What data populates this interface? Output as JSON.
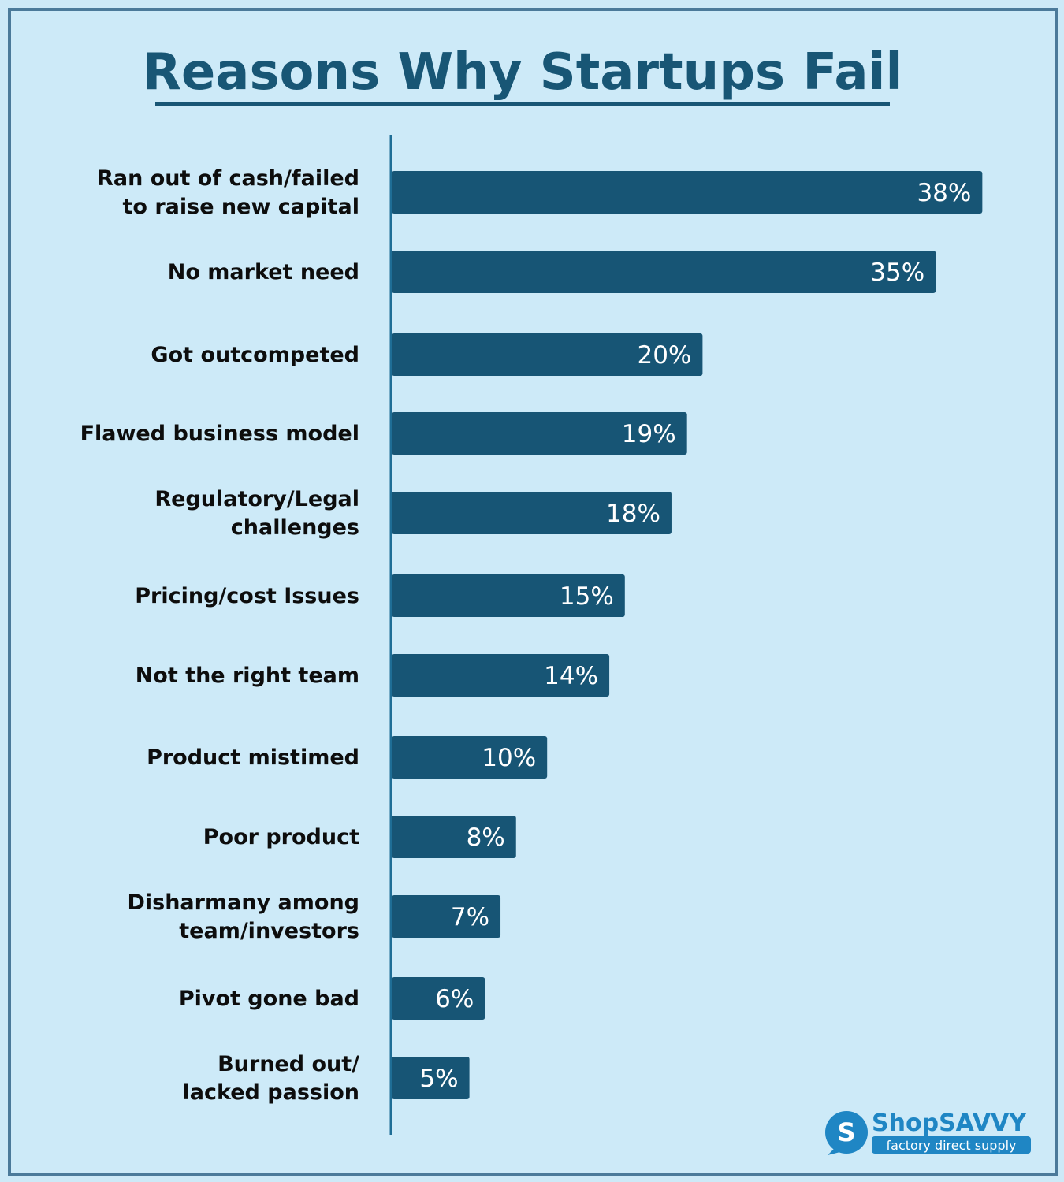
{
  "chart_data": {
    "type": "bar",
    "orientation": "horizontal",
    "title": "Reasons Why Startups Fail",
    "categories": [
      [
        "Ran out of cash/failed",
        "to raise new capital"
      ],
      [
        "No market need"
      ],
      [
        "Got outcompeted"
      ],
      [
        "Flawed business model"
      ],
      [
        "Regulatory/Legal",
        "challenges"
      ],
      [
        "Pricing/cost Issues"
      ],
      [
        "Not the right team"
      ],
      [
        "Product mistimed"
      ],
      [
        "Poor product"
      ],
      [
        "Disharmany among",
        "team/investors"
      ],
      [
        "Pivot gone bad"
      ],
      [
        "Burned out/",
        "lacked passion"
      ]
    ],
    "values": [
      38,
      35,
      20,
      19,
      18,
      15,
      14,
      10,
      8,
      7,
      6,
      5
    ],
    "value_labels": [
      "38%",
      "35%",
      "20%",
      "19%",
      "18%",
      "15%",
      "14%",
      "10%",
      "8%",
      "7%",
      "6%",
      "5%"
    ],
    "xlim": [
      0,
      40
    ],
    "grid": false,
    "colors": {
      "bar": "#175575",
      "axis": "#1f6e96",
      "title": "#185675",
      "background": "#cdeaf8",
      "border": "#4b7a9a"
    }
  },
  "logo": {
    "brand_first": "Shop",
    "brand_second": "SAVVY",
    "tagline": "factory direct supply",
    "icon": "shopsavvy-s-logo-icon"
  }
}
